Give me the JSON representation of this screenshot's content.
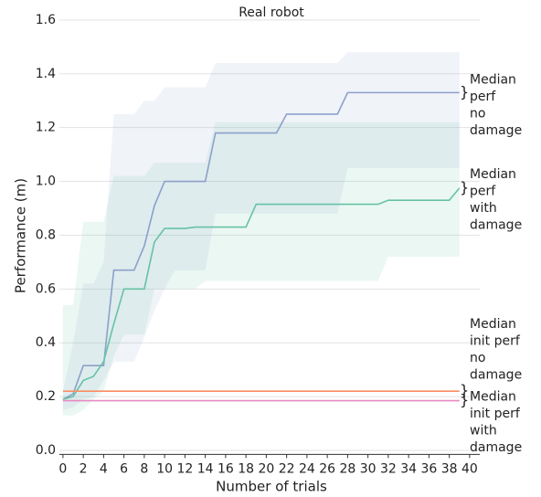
{
  "chart_data": {
    "type": "line",
    "title": "Real robot",
    "xlabel": "Number of trials",
    "ylabel": "Performance (m)",
    "x": [
      0,
      1,
      2,
      3,
      4,
      5,
      6,
      7,
      8,
      9,
      10,
      11,
      12,
      13,
      14,
      15,
      16,
      17,
      18,
      19,
      20,
      21,
      22,
      23,
      24,
      25,
      26,
      27,
      28,
      29,
      30,
      31,
      32,
      33,
      34,
      35,
      36,
      37,
      38,
      39
    ],
    "series": [
      {
        "name": "Median perf no damage",
        "label": [
          "Median",
          "perf",
          "no",
          "damage"
        ],
        "color": "#8da0cb",
        "values": [
          0.19,
          0.21,
          0.315,
          0.315,
          0.315,
          0.67,
          0.67,
          0.67,
          0.76,
          0.91,
          1.0,
          1.0,
          1.0,
          1.0,
          1.0,
          1.18,
          1.18,
          1.18,
          1.18,
          1.18,
          1.18,
          1.18,
          1.25,
          1.25,
          1.25,
          1.25,
          1.25,
          1.25,
          1.33,
          1.33,
          1.33,
          1.33,
          1.33,
          1.33,
          1.33,
          1.33,
          1.33,
          1.33,
          1.33,
          1.33
        ],
        "upper": [
          0.22,
          0.4,
          0.62,
          0.62,
          0.7,
          1.25,
          1.25,
          1.25,
          1.3,
          1.3,
          1.35,
          1.35,
          1.35,
          1.35,
          1.35,
          1.44,
          1.44,
          1.44,
          1.44,
          1.44,
          1.44,
          1.44,
          1.44,
          1.44,
          1.44,
          1.44,
          1.44,
          1.44,
          1.48,
          1.48,
          1.48,
          1.48,
          1.48,
          1.48,
          1.48,
          1.48,
          1.48,
          1.48,
          1.48,
          1.48
        ],
        "lower": [
          0.15,
          0.16,
          0.19,
          0.2,
          0.26,
          0.33,
          0.33,
          0.33,
          0.42,
          0.52,
          0.6,
          0.67,
          0.67,
          0.67,
          0.67,
          0.88,
          0.88,
          0.88,
          0.88,
          0.88,
          0.88,
          0.88,
          0.88,
          0.88,
          0.88,
          0.88,
          0.88,
          0.88,
          1.05,
          1.05,
          1.05,
          1.05,
          1.05,
          1.05,
          1.05,
          1.05,
          1.05,
          1.05,
          1.05,
          1.05
        ]
      },
      {
        "name": "Median perf with damage",
        "label": [
          "Median",
          "perf",
          "with",
          "damage"
        ],
        "color": "#66c2a5",
        "values": [
          0.19,
          0.2,
          0.26,
          0.275,
          0.33,
          0.47,
          0.6,
          0.6,
          0.6,
          0.775,
          0.825,
          0.825,
          0.825,
          0.83,
          0.83,
          0.83,
          0.83,
          0.83,
          0.83,
          0.915,
          0.915,
          0.915,
          0.915,
          0.915,
          0.915,
          0.915,
          0.915,
          0.915,
          0.915,
          0.915,
          0.915,
          0.915,
          0.93,
          0.93,
          0.93,
          0.93,
          0.93,
          0.93,
          0.93,
          0.975
        ],
        "upper": [
          0.54,
          0.54,
          0.85,
          0.85,
          0.85,
          1.02,
          1.02,
          1.02,
          1.02,
          1.07,
          1.07,
          1.07,
          1.07,
          1.07,
          1.07,
          1.22,
          1.22,
          1.22,
          1.22,
          1.22,
          1.22,
          1.22,
          1.22,
          1.22,
          1.22,
          1.22,
          1.22,
          1.22,
          1.22,
          1.22,
          1.22,
          1.22,
          1.22,
          1.22,
          1.22,
          1.22,
          1.22,
          1.22,
          1.22,
          1.22
        ],
        "lower": [
          0.13,
          0.13,
          0.15,
          0.19,
          0.22,
          0.35,
          0.43,
          0.43,
          0.43,
          0.6,
          0.6,
          0.6,
          0.6,
          0.6,
          0.63,
          0.63,
          0.63,
          0.63,
          0.63,
          0.63,
          0.63,
          0.63,
          0.63,
          0.63,
          0.63,
          0.63,
          0.63,
          0.63,
          0.63,
          0.63,
          0.63,
          0.63,
          0.72,
          0.72,
          0.72,
          0.72,
          0.72,
          0.72,
          0.72,
          0.72
        ]
      },
      {
        "name": "Median init perf no damage",
        "label": [
          "Median",
          "init perf",
          "no",
          "damage"
        ],
        "color": "#fc8d62",
        "value": 0.22
      },
      {
        "name": "Median init perf with damage",
        "label": [
          "Median",
          "init perf",
          "with",
          "damage"
        ],
        "color": "#e78ac3",
        "value": 0.185
      }
    ],
    "xlim": [
      -0.35,
      41
    ],
    "ylim": [
      -0.015,
      1.62
    ],
    "xticks": [
      0,
      2,
      4,
      6,
      8,
      10,
      12,
      14,
      16,
      18,
      20,
      22,
      24,
      26,
      28,
      30,
      32,
      34,
      36,
      38,
      40
    ],
    "yticks": [
      {
        "value": 0,
        "label": "0.0"
      },
      0.2,
      0.4,
      0.6,
      0.8,
      {
        "value": 1,
        "label": "1.0"
      },
      1.2,
      1.4,
      1.6
    ],
    "grid": true
  }
}
